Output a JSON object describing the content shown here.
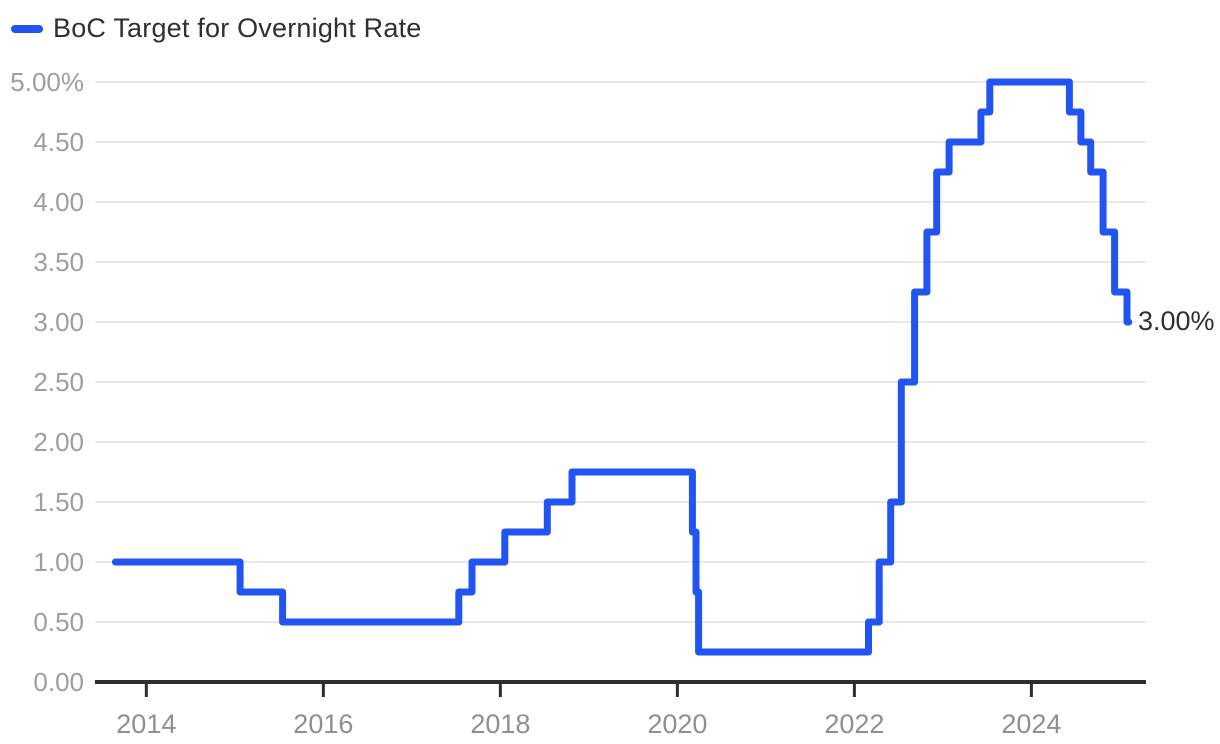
{
  "legend": {
    "label": "BoC Target for Overnight Rate"
  },
  "colors": {
    "line": "#2254f2",
    "grid": "#e9e9e9",
    "axis": "#2e2e2e",
    "y_tick_label": "#9e9e9e",
    "x_tick_label": "#8f8f8f",
    "text": "#303030",
    "background": "#ffffff"
  },
  "chart_data": {
    "type": "line",
    "step": "after",
    "title": "",
    "legend_position": "top-left",
    "grid": "horizontal",
    "x_unit": "decimal-year",
    "y_unit": "percent",
    "xlim": [
      2013.42,
      2025.295
    ],
    "ylim": [
      0,
      5
    ],
    "x_ticks": [
      {
        "value": 2014,
        "label": "2014"
      },
      {
        "value": 2016,
        "label": "2016"
      },
      {
        "value": 2018,
        "label": "2018"
      },
      {
        "value": 2020,
        "label": "2020"
      },
      {
        "value": 2022,
        "label": "2022"
      },
      {
        "value": 2024,
        "label": "2024"
      }
    ],
    "y_ticks": [
      {
        "value": 0.0,
        "label": "0.00"
      },
      {
        "value": 0.5,
        "label": "0.50"
      },
      {
        "value": 1.0,
        "label": "1.00"
      },
      {
        "value": 1.5,
        "label": "1.50"
      },
      {
        "value": 2.0,
        "label": "2.00"
      },
      {
        "value": 2.5,
        "label": "2.50"
      },
      {
        "value": 3.0,
        "label": "3.00"
      },
      {
        "value": 3.5,
        "label": "3.50"
      },
      {
        "value": 4.0,
        "label": "4.00"
      },
      {
        "value": 4.5,
        "label": "4.50"
      },
      {
        "value": 5.0,
        "label": "5.00%"
      }
    ],
    "series": [
      {
        "name": "BoC Target for Overnight Rate",
        "color": "#2254f2",
        "points": [
          [
            2013.65,
            1.0
          ],
          [
            2015.06,
            0.75
          ],
          [
            2015.54,
            0.5
          ],
          [
            2017.53,
            0.75
          ],
          [
            2017.68,
            1.0
          ],
          [
            2018.05,
            1.25
          ],
          [
            2018.53,
            1.5
          ],
          [
            2018.81,
            1.75
          ],
          [
            2020.17,
            1.25
          ],
          [
            2020.21,
            0.75
          ],
          [
            2020.24,
            0.25
          ],
          [
            2022.16,
            0.5
          ],
          [
            2022.28,
            1.0
          ],
          [
            2022.41,
            1.5
          ],
          [
            2022.53,
            2.5
          ],
          [
            2022.68,
            3.25
          ],
          [
            2022.82,
            3.75
          ],
          [
            2022.93,
            4.25
          ],
          [
            2023.07,
            4.5
          ],
          [
            2023.43,
            4.75
          ],
          [
            2023.53,
            5.0
          ],
          [
            2024.43,
            4.75
          ],
          [
            2024.56,
            4.5
          ],
          [
            2024.67,
            4.25
          ],
          [
            2024.81,
            3.75
          ],
          [
            2024.94,
            3.25
          ],
          [
            2025.08,
            3.0
          ],
          [
            2025.1,
            3.0
          ]
        ]
      }
    ],
    "end_label": "3.00%"
  }
}
